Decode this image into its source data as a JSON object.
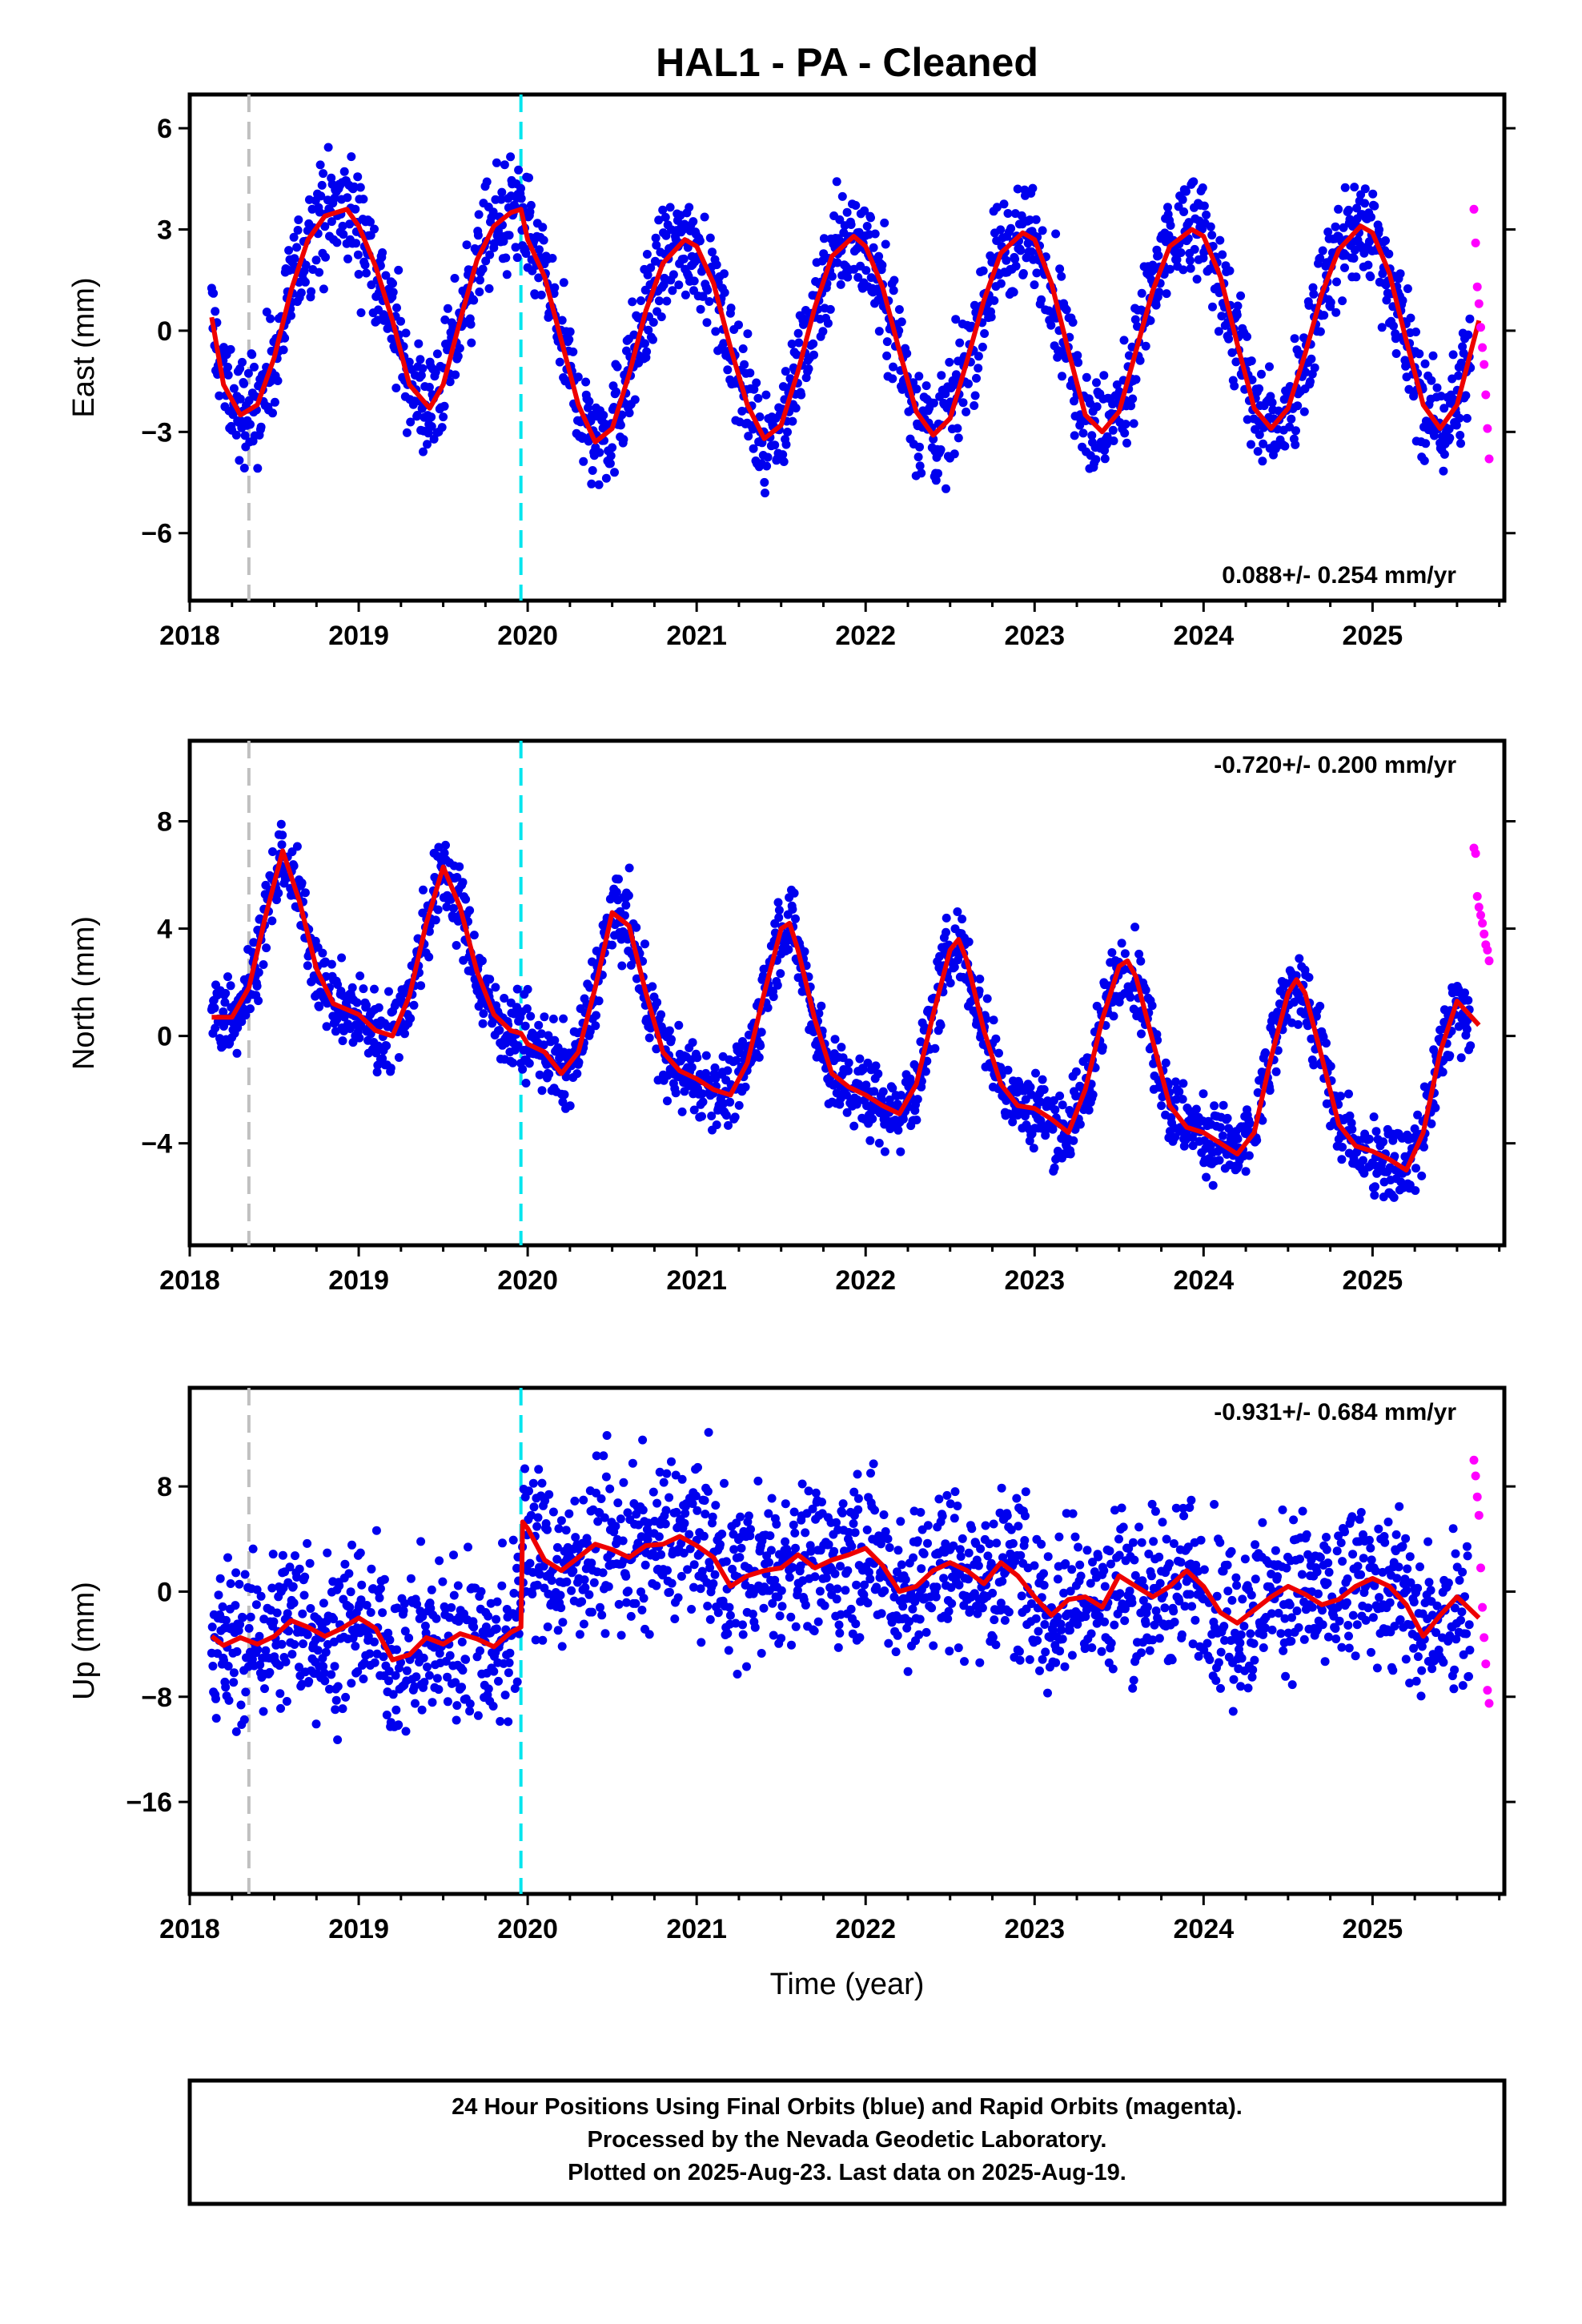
{
  "title": "HAL1  - PA - Cleaned",
  "x_axis_label": "Time (year)",
  "footer": [
    "24 Hour Positions Using Final Orbits (blue) and Rapid Orbits (magenta).",
    "Processed by the Nevada Geodetic Laboratory.",
    "Plotted on 2025-Aug-23. Last data on 2025-Aug-19."
  ],
  "colors": {
    "final_orbits": "#0000ee",
    "rapid_orbits": "#ff00ff",
    "model_fit": "#ee0000",
    "gray_marker": "#c0c0c0",
    "cyan_marker": "#00e5ee"
  },
  "chart_data": [
    {
      "type": "scatter",
      "component": "east",
      "ylabel": "East (mm)",
      "xlim": [
        2018.0,
        2025.78
      ],
      "ylim": [
        -8.0,
        7.0
      ],
      "xticks": [
        2018,
        2019,
        2020,
        2021,
        2022,
        2023,
        2024,
        2025
      ],
      "yticks": [
        -6,
        -3,
        0,
        3,
        6
      ],
      "rate_label": "0.088+/- 0.254 mm/yr",
      "rate_position": "bottom-right",
      "vertical_markers": [
        {
          "x": 2018.35,
          "color": "gray"
        },
        {
          "x": 2019.96,
          "color": "cyan"
        }
      ],
      "series_data": {
        "name": "24 Hour Positions Using Final Orbits",
        "x_range": [
          2018.13,
          2025.58
        ],
        "cycles": [
          [
            2018.13,
            -1.5
          ],
          [
            2018.3,
            -2.6
          ],
          [
            2018.45,
            -1.8
          ],
          [
            2018.7,
            1.8
          ],
          [
            2018.93,
            3.6
          ],
          [
            2019.15,
            1.8
          ],
          [
            2019.42,
            -2.3
          ],
          [
            2019.6,
            -0.5
          ],
          [
            2019.82,
            3.2
          ],
          [
            2019.96,
            3.6
          ],
          [
            2020.05,
            1.0
          ],
          [
            2020.4,
            -3.2
          ],
          [
            2020.6,
            -1.5
          ],
          [
            2020.9,
            2.6
          ],
          [
            2021.05,
            2.2
          ],
          [
            2021.4,
            -3.2
          ],
          [
            2021.6,
            -1.3
          ],
          [
            2021.95,
            2.8
          ],
          [
            2022.1,
            1.5
          ],
          [
            2022.38,
            -3.0
          ],
          [
            2022.6,
            -1.2
          ],
          [
            2022.9,
            2.8
          ],
          [
            2023.05,
            1.8
          ],
          [
            2023.38,
            -3.0
          ],
          [
            2023.6,
            -0.5
          ],
          [
            2023.93,
            2.9
          ],
          [
            2024.1,
            1.6
          ],
          [
            2024.38,
            -2.9
          ],
          [
            2024.6,
            -1.2
          ],
          [
            2024.93,
            3.0
          ],
          [
            2025.08,
            1.8
          ],
          [
            2025.42,
            -2.9
          ],
          [
            2025.58,
            -1.3
          ]
        ],
        "scatter": 1.1
      },
      "rapid": {
        "name": "Rapid Orbits",
        "x": [
          2025.6,
          2025.61,
          2025.62,
          2025.63,
          2025.64,
          2025.65,
          2025.66,
          2025.67,
          2025.68,
          2025.69
        ],
        "y": [
          3.6,
          2.6,
          1.3,
          0.8,
          0.1,
          -0.5,
          -1.0,
          -1.9,
          -2.9,
          -3.8
        ]
      },
      "fit": {
        "name": "Model Fit",
        "x": [
          2018.13,
          2018.2,
          2018.3,
          2018.4,
          2018.5,
          2018.6,
          2018.7,
          2018.8,
          2018.93,
          2019.0,
          2019.1,
          2019.2,
          2019.3,
          2019.42,
          2019.5,
          2019.6,
          2019.7,
          2019.8,
          2019.9,
          2019.96,
          2020.0,
          2020.1,
          2020.2,
          2020.3,
          2020.4,
          2020.5,
          2020.6,
          2020.7,
          2020.8,
          2020.93,
          2021.0,
          2021.1,
          2021.2,
          2021.3,
          2021.4,
          2021.5,
          2021.6,
          2021.7,
          2021.8,
          2021.93,
          2022.0,
          2022.1,
          2022.2,
          2022.3,
          2022.4,
          2022.5,
          2022.6,
          2022.7,
          2022.8,
          2022.93,
          2023.0,
          2023.1,
          2023.2,
          2023.3,
          2023.4,
          2023.5,
          2023.6,
          2023.7,
          2023.8,
          2023.93,
          2024.0,
          2024.1,
          2024.2,
          2024.3,
          2024.4,
          2024.5,
          2024.6,
          2024.7,
          2024.8,
          2024.93,
          2025.0,
          2025.1,
          2025.2,
          2025.3,
          2025.4,
          2025.5,
          2025.63
        ],
        "y": [
          0.4,
          -1.6,
          -2.5,
          -2.2,
          -0.8,
          1.2,
          2.7,
          3.4,
          3.6,
          3.1,
          1.9,
          0.3,
          -1.6,
          -2.3,
          -1.6,
          0.3,
          2.1,
          3.1,
          3.5,
          3.6,
          2.7,
          1.6,
          -0.3,
          -2.2,
          -3.3,
          -2.9,
          -1.3,
          0.6,
          2.0,
          2.7,
          2.5,
          1.4,
          -0.5,
          -2.2,
          -3.2,
          -2.8,
          -1.2,
          0.7,
          2.2,
          2.8,
          2.5,
          1.3,
          -0.6,
          -2.4,
          -3.1,
          -2.6,
          -0.9,
          0.9,
          2.3,
          2.9,
          2.7,
          1.4,
          -0.6,
          -2.5,
          -3.0,
          -2.4,
          -0.6,
          1.2,
          2.5,
          3.0,
          2.8,
          1.6,
          -0.4,
          -2.3,
          -2.9,
          -2.3,
          -0.7,
          1.1,
          2.4,
          3.1,
          2.9,
          1.7,
          -0.3,
          -2.2,
          -2.9,
          -2.2,
          0.3
        ]
      }
    },
    {
      "type": "scatter",
      "component": "north",
      "ylabel": "North (mm)",
      "xlim": [
        2018.0,
        2025.78
      ],
      "ylim": [
        -7.8,
        11.0
      ],
      "xticks": [
        2018,
        2019,
        2020,
        2021,
        2022,
        2023,
        2024,
        2025
      ],
      "yticks": [
        -4,
        0,
        4,
        8
      ],
      "rate_label": "-0.720+/- 0.200 mm/yr",
      "rate_position": "top-right",
      "vertical_markers": [
        {
          "x": 2018.35,
          "color": "gray"
        },
        {
          "x": 2019.96,
          "color": "cyan"
        }
      ],
      "series_data": {
        "name": "24 Hour Positions Using Final Orbits",
        "x_range": [
          2018.13,
          2025.58
        ],
        "scatter": 1.0
      },
      "rapid": {
        "name": "Rapid Orbits",
        "x": [
          2025.6,
          2025.61,
          2025.62,
          2025.63,
          2025.64,
          2025.65,
          2025.66,
          2025.67,
          2025.68,
          2025.69
        ],
        "y": [
          7.0,
          6.8,
          5.2,
          4.8,
          4.5,
          4.2,
          3.8,
          3.4,
          3.2,
          2.8
        ]
      },
      "fit": {
        "name": "Model Fit",
        "x": [
          2018.13,
          2018.25,
          2018.35,
          2018.45,
          2018.55,
          2018.65,
          2018.75,
          2018.85,
          2019.0,
          2019.1,
          2019.2,
          2019.3,
          2019.4,
          2019.5,
          2019.6,
          2019.7,
          2019.8,
          2019.9,
          2019.96,
          2020.0,
          2020.1,
          2020.2,
          2020.3,
          2020.4,
          2020.5,
          2020.6,
          2020.7,
          2020.8,
          2020.9,
          2021.0,
          2021.1,
          2021.2,
          2021.3,
          2021.4,
          2021.5,
          2021.55,
          2021.6,
          2021.7,
          2021.8,
          2021.9,
          2022.0,
          2022.1,
          2022.2,
          2022.3,
          2022.4,
          2022.5,
          2022.55,
          2022.6,
          2022.7,
          2022.8,
          2022.9,
          2023.0,
          2023.1,
          2023.2,
          2023.3,
          2023.4,
          2023.5,
          2023.55,
          2023.6,
          2023.7,
          2023.8,
          2023.9,
          2024.0,
          2024.1,
          2024.2,
          2024.3,
          2024.4,
          2024.5,
          2024.55,
          2024.6,
          2024.7,
          2024.8,
          2024.9,
          2025.0,
          2025.1,
          2025.2,
          2025.3,
          2025.4,
          2025.5,
          2025.63
        ],
        "y": [
          0.7,
          0.7,
          1.8,
          4.5,
          6.9,
          5.0,
          2.5,
          1.2,
          0.8,
          0.2,
          0.0,
          1.5,
          4.2,
          6.3,
          4.8,
          2.4,
          0.8,
          0.2,
          0.1,
          -0.3,
          -0.6,
          -1.4,
          -0.6,
          1.8,
          4.6,
          4.1,
          1.6,
          -0.6,
          -1.3,
          -1.6,
          -2.0,
          -2.2,
          -1.0,
          1.6,
          4.0,
          4.2,
          3.2,
          0.6,
          -1.4,
          -1.9,
          -2.2,
          -2.6,
          -2.9,
          -1.8,
          0.8,
          3.2,
          3.6,
          2.8,
          0.2,
          -1.8,
          -2.6,
          -2.7,
          -3.1,
          -3.6,
          -2.0,
          0.6,
          2.6,
          2.8,
          2.2,
          -0.2,
          -2.6,
          -3.4,
          -3.6,
          -4.0,
          -4.4,
          -3.6,
          -0.8,
          1.6,
          2.1,
          1.6,
          -0.8,
          -3.3,
          -4.1,
          -4.3,
          -4.6,
          -5.0,
          -3.6,
          -0.6,
          1.3,
          0.4
        ]
      }
    },
    {
      "type": "scatter",
      "component": "up",
      "ylabel": "Up (mm)",
      "xlim": [
        2018.0,
        2025.78
      ],
      "ylim": [
        -23.0,
        15.5
      ],
      "xticks": [
        2018,
        2019,
        2020,
        2021,
        2022,
        2023,
        2024,
        2025
      ],
      "yticks": [
        -16,
        -8,
        0,
        8
      ],
      "rate_label": "-0.931+/- 0.684 mm/yr",
      "rate_position": "top-right",
      "vertical_markers": [
        {
          "x": 2018.35,
          "color": "gray"
        },
        {
          "x": 2019.96,
          "color": "cyan"
        }
      ],
      "series_data": {
        "name": "24 Hour Positions Using Final Orbits",
        "x_range": [
          2018.13,
          2025.58
        ],
        "scatter": 4.2
      },
      "rapid": {
        "name": "Rapid Orbits",
        "x": [
          2025.6,
          2025.61,
          2025.62,
          2025.63,
          2025.64,
          2025.65,
          2025.66,
          2025.67,
          2025.68,
          2025.69
        ],
        "y": [
          10.0,
          8.8,
          7.2,
          5.8,
          1.8,
          -1.2,
          -3.5,
          -5.5,
          -7.5,
          -8.5
        ]
      },
      "fit": {
        "name": "Model Fit",
        "x": [
          2018.13,
          2018.2,
          2018.3,
          2018.4,
          2018.5,
          2018.6,
          2018.7,
          2018.8,
          2018.9,
          2019.0,
          2019.1,
          2019.2,
          2019.3,
          2019.4,
          2019.5,
          2019.6,
          2019.7,
          2019.8,
          2019.9,
          2019.96,
          2019.97,
          2020.0,
          2020.1,
          2020.2,
          2020.3,
          2020.4,
          2020.5,
          2020.6,
          2020.7,
          2020.8,
          2020.9,
          2021.0,
          2021.1,
          2021.2,
          2021.3,
          2021.4,
          2021.5,
          2021.6,
          2021.7,
          2021.8,
          2021.9,
          2022.0,
          2022.1,
          2022.2,
          2022.3,
          2022.4,
          2022.5,
          2022.6,
          2022.7,
          2022.8,
          2022.9,
          2023.0,
          2023.1,
          2023.2,
          2023.3,
          2023.4,
          2023.5,
          2023.6,
          2023.7,
          2023.8,
          2023.9,
          2024.0,
          2024.1,
          2024.2,
          2024.3,
          2024.4,
          2024.5,
          2024.6,
          2024.7,
          2024.8,
          2024.9,
          2025.0,
          2025.1,
          2025.2,
          2025.3,
          2025.4,
          2025.5,
          2025.63
        ],
        "y": [
          -3.4,
          -4.1,
          -3.5,
          -4.0,
          -3.4,
          -2.2,
          -2.7,
          -3.4,
          -2.8,
          -2.0,
          -2.8,
          -5.2,
          -4.8,
          -3.5,
          -4.0,
          -3.2,
          -3.6,
          -4.2,
          -3.1,
          -2.7,
          5.3,
          4.8,
          2.4,
          1.6,
          2.6,
          3.6,
          3.2,
          2.6,
          3.5,
          3.6,
          4.2,
          3.5,
          2.6,
          0.4,
          1.2,
          1.6,
          1.8,
          2.8,
          1.8,
          2.4,
          2.8,
          3.3,
          2.0,
          0.0,
          0.4,
          1.6,
          2.2,
          1.6,
          0.6,
          2.2,
          1.2,
          -0.4,
          -1.8,
          -0.6,
          -0.4,
          -1.2,
          1.2,
          0.4,
          -0.4,
          0.4,
          1.6,
          0.4,
          -1.6,
          -2.4,
          -1.4,
          -0.4,
          0.4,
          -0.2,
          -1.0,
          -0.6,
          0.4,
          1.0,
          0.4,
          -1.0,
          -3.4,
          -1.8,
          -0.4,
          -2.0
        ]
      }
    }
  ]
}
